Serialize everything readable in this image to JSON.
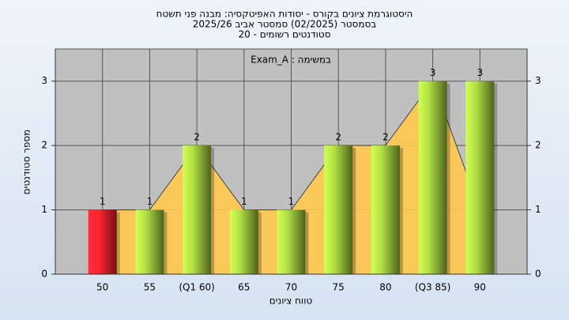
{
  "chart_data": {
    "type": "bar",
    "title": "היסטוגרמת ציונים בקורס - יסודות האפיטקסיה: מבנה פני תשטח",
    "subtitle": "בסמסטר  (02/2025)  סמסטר אביב 2025/26",
    "subtitle2": "סטודנטים רשומים - 20",
    "annotation": "Exam_A : במשימה",
    "x_label": "טווח ציונים",
    "y_label": "מספר סטודנטים",
    "categories": [
      "50",
      "55",
      "(Q1 60)",
      "65",
      "70",
      "75",
      "80",
      "(Q3 85)",
      "90"
    ],
    "values": [
      1,
      1,
      2,
      1,
      1,
      2,
      2,
      3,
      3
    ],
    "colors": [
      "#e8202a",
      "#9cc43c",
      "#9cc43c",
      "#9cc43c",
      "#9cc43c",
      "#9cc43c",
      "#9cc43c",
      "#9cc43c",
      "#9cc43c"
    ],
    "area": {
      "color": "#ffc94d",
      "values": [
        1,
        1,
        2,
        1,
        1,
        2,
        2,
        3,
        1
      ]
    },
    "ylim": [
      0,
      3.5
    ],
    "yticks": [
      0,
      1,
      2,
      3
    ],
    "y2lim": [
      0,
      3.5
    ],
    "y2ticks": [
      0,
      1,
      2,
      3
    ],
    "grid": true
  }
}
